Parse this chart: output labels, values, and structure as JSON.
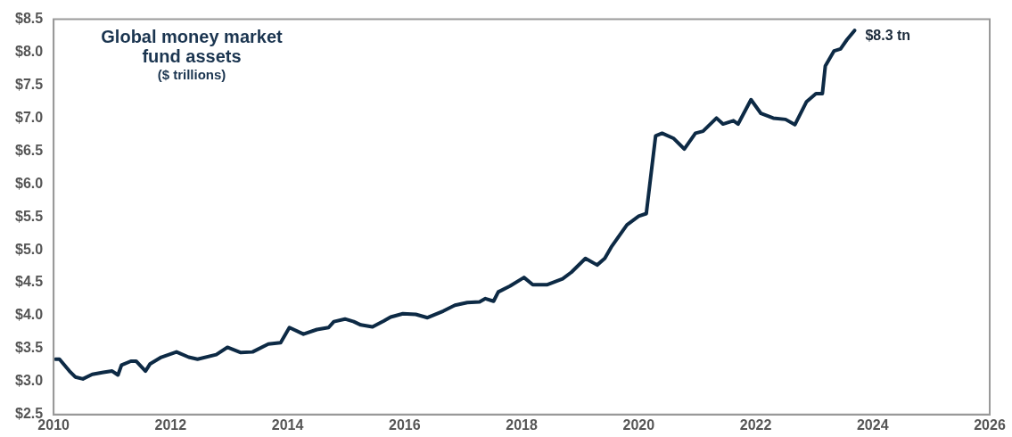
{
  "chart_data": {
    "type": "line",
    "title": "Global money market fund assets",
    "subtitle": "($ trillions)",
    "x": [
      2010.03,
      2010.1,
      2010.27,
      2010.37,
      2010.5,
      2010.66,
      2010.85,
      2011.0,
      2011.1,
      2011.16,
      2011.32,
      2011.41,
      2011.57,
      2011.65,
      2011.84,
      2012.1,
      2012.31,
      2012.46,
      2012.78,
      2012.97,
      2013.2,
      2013.4,
      2013.67,
      2013.88,
      2014.03,
      2014.27,
      2014.5,
      2014.7,
      2014.79,
      2014.98,
      2015.13,
      2015.25,
      2015.45,
      2015.64,
      2015.76,
      2015.97,
      2016.19,
      2016.39,
      2016.66,
      2016.86,
      2017.07,
      2017.28,
      2017.38,
      2017.52,
      2017.6,
      2017.8,
      2018.04,
      2018.19,
      2018.43,
      2018.7,
      2018.85,
      2019.09,
      2019.29,
      2019.42,
      2019.53,
      2019.8,
      2020.0,
      2020.13,
      2020.29,
      2020.4,
      2020.6,
      2020.78,
      2020.97,
      2021.1,
      2021.33,
      2021.44,
      2021.62,
      2021.7,
      2021.92,
      2022.09,
      2022.3,
      2022.51,
      2022.67,
      2022.87,
      2023.03,
      2023.14,
      2023.19,
      2023.34,
      2023.45,
      2023.56,
      2023.69
    ],
    "series": [
      {
        "color": "#0d2a45",
        "values": [
          3.34,
          3.34,
          3.16,
          3.07,
          3.04,
          3.11,
          3.14,
          3.16,
          3.1,
          3.25,
          3.31,
          3.31,
          3.16,
          3.27,
          3.37,
          3.45,
          3.37,
          3.34,
          3.41,
          3.52,
          3.44,
          3.45,
          3.57,
          3.59,
          3.82,
          3.72,
          3.79,
          3.82,
          3.91,
          3.95,
          3.91,
          3.86,
          3.83,
          3.92,
          3.98,
          4.03,
          4.02,
          3.97,
          4.07,
          4.16,
          4.2,
          4.21,
          4.26,
          4.22,
          4.36,
          4.45,
          4.58,
          4.47,
          4.47,
          4.56,
          4.66,
          4.87,
          4.77,
          4.87,
          5.04,
          5.38,
          5.51,
          5.55,
          6.73,
          6.77,
          6.69,
          6.53,
          6.77,
          6.8,
          7.0,
          6.91,
          6.96,
          6.91,
          7.28,
          7.07,
          7.0,
          6.98,
          6.9,
          7.25,
          7.37,
          7.37,
          7.79,
          8.02,
          8.05,
          8.19,
          8.33
        ]
      }
    ],
    "xlim": [
      2010,
      2026
    ],
    "xticks": [
      2010,
      2012,
      2014,
      2016,
      2018,
      2020,
      2022,
      2024,
      2026
    ],
    "ylim": [
      2.5,
      8.5
    ],
    "yticks": [
      {
        "value": 2.5,
        "label": "$2.5"
      },
      {
        "value": 3,
        "label": "$3.0"
      },
      {
        "value": 3.5,
        "label": "$3.5"
      },
      {
        "value": 4,
        "label": "$4.0"
      },
      {
        "value": 4.5,
        "label": "$4.5"
      },
      {
        "value": 5,
        "label": "$5.0"
      },
      {
        "value": 5.5,
        "label": "$5.5"
      },
      {
        "value": 6,
        "label": "$6.0"
      },
      {
        "value": 6.5,
        "label": "$6.5"
      },
      {
        "value": 7,
        "label": "$7.0"
      },
      {
        "value": 7.5,
        "label": "$7.5"
      },
      {
        "value": 8,
        "label": "$8.0"
      },
      {
        "value": 8.5,
        "label": "$8.5"
      }
    ],
    "annotations": [
      {
        "text": "$8.3 tn",
        "x": 2023.69,
        "y": 8.33
      }
    ],
    "marker": "none",
    "line_style": "solid",
    "grid": false,
    "legend": false
  }
}
